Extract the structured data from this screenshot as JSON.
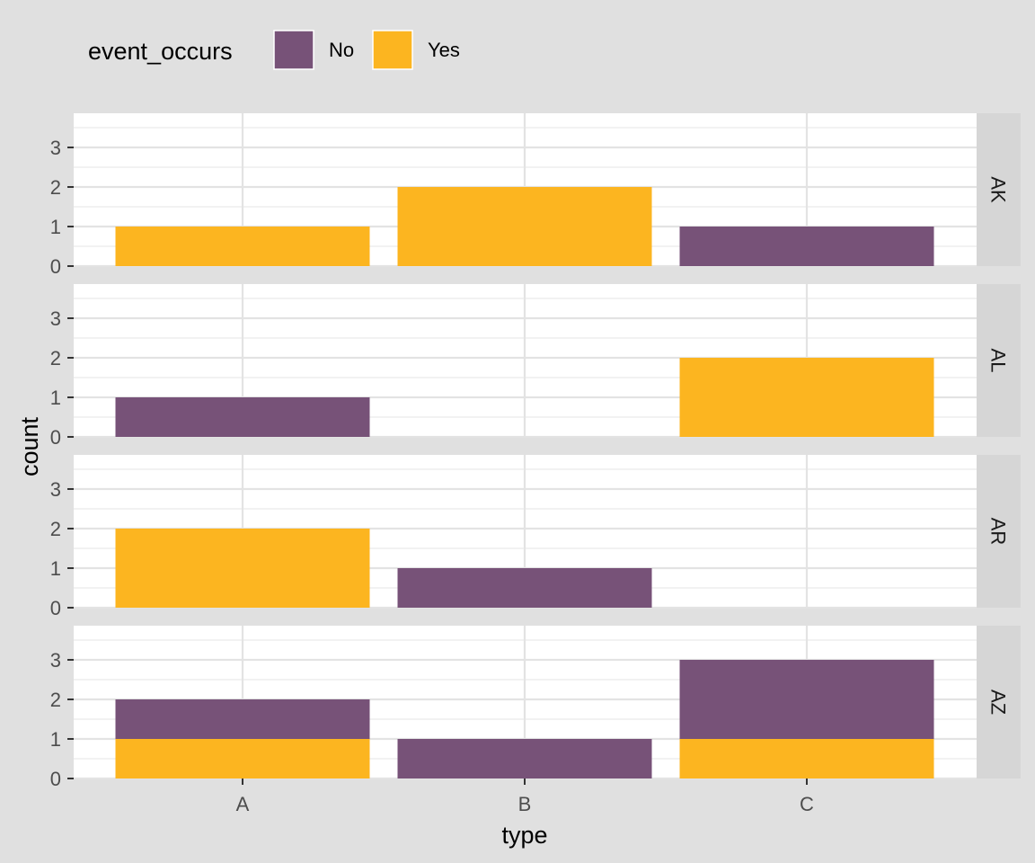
{
  "chart_data": {
    "type": "bar",
    "stacked": true,
    "xlabel": "type",
    "ylabel": "count",
    "categories": [
      "A",
      "B",
      "C"
    ],
    "y_ticks": [
      0,
      1,
      2,
      3
    ],
    "ylim": [
      0,
      3.8
    ],
    "legend": {
      "title": "event_occurs",
      "position": "top",
      "entries": [
        {
          "label": "No",
          "color": "#775278"
        },
        {
          "label": "Yes",
          "color": "#FCB520"
        }
      ]
    },
    "facets": [
      {
        "label": "AK",
        "series": [
          {
            "name": "No",
            "values": [
              0,
              0,
              1
            ]
          },
          {
            "name": "Yes",
            "values": [
              1,
              2,
              0
            ]
          }
        ]
      },
      {
        "label": "AL",
        "series": [
          {
            "name": "No",
            "values": [
              1,
              0,
              0
            ]
          },
          {
            "name": "Yes",
            "values": [
              0,
              0,
              2
            ]
          }
        ]
      },
      {
        "label": "AR",
        "series": [
          {
            "name": "No",
            "values": [
              0,
              1,
              0
            ]
          },
          {
            "name": "Yes",
            "values": [
              2,
              0,
              0
            ]
          }
        ]
      },
      {
        "label": "AZ",
        "series": [
          {
            "name": "No",
            "values": [
              1,
              1,
              2
            ]
          },
          {
            "name": "Yes",
            "values": [
              1,
              0,
              1
            ]
          }
        ]
      }
    ],
    "grid": true
  }
}
